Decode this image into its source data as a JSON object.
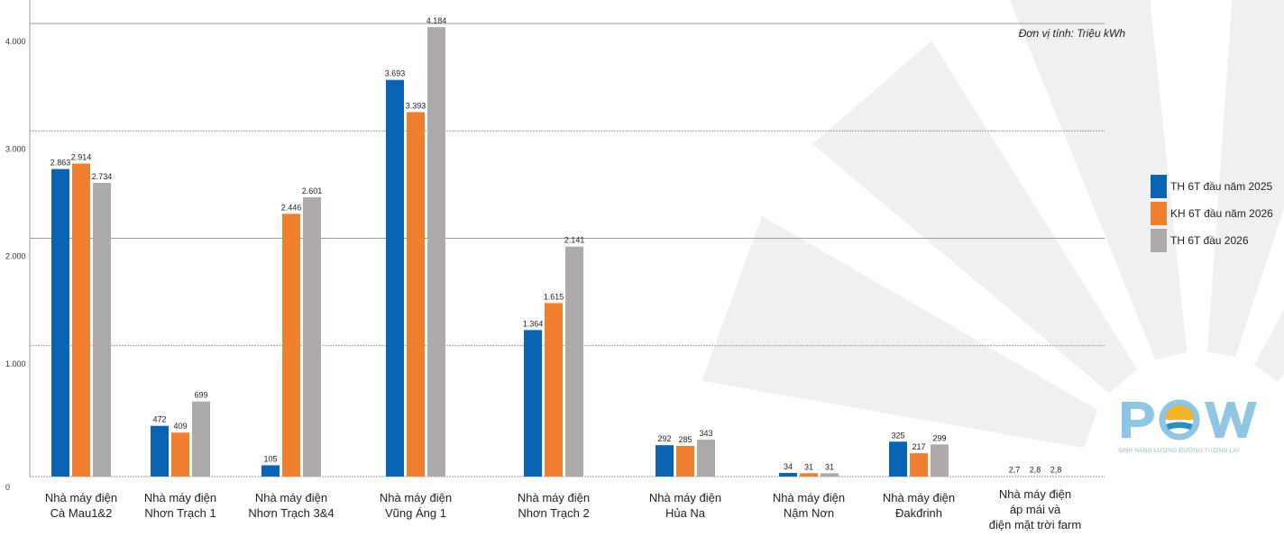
{
  "unit_note": "Đơn vị tính: Triệu kWh",
  "colors": {
    "series_1": "#0a64b4",
    "series_2": "#ef7f2f",
    "series_3": "#aeaaaa",
    "grid": "#9a9a9a",
    "watermark": "#f0f0f0"
  },
  "logo": {
    "text": "POW",
    "tagline": "SINH NĂNG LƯỢNG ĐƯỜNG TƯƠNG LAI"
  },
  "chart_data": {
    "type": "bar",
    "title": "",
    "xlabel": "",
    "ylabel": "",
    "ylim": [
      0,
      4500
    ],
    "yticks": [
      0,
      1000,
      2000,
      3000,
      4000
    ],
    "ytick_labels": [
      "0",
      "1.000",
      "2.000",
      "3.000",
      "4.000"
    ],
    "grid": true,
    "legend_position": "right",
    "categories": [
      [
        "Nhà máy điện",
        "Cà Mau1&2"
      ],
      [
        "Nhà máy điện",
        "Nhơn Trạch 1"
      ],
      [
        "Nhà máy điện",
        "Nhơn Trạch 3&4"
      ],
      [
        "Nhà máy điện",
        "Vũng Áng 1"
      ],
      [
        "Nhà máy điện",
        "Nhơn Trạch 2"
      ],
      [
        "Nhà máy điện",
        "Hủa Na"
      ],
      [
        "Nhà máy điện",
        "Nậm Nơn"
      ],
      [
        "Nhà máy điện",
        "Đakđrinh"
      ],
      [
        "Nhà máy điện",
        "áp mái và",
        "điện mặt trời farm"
      ]
    ],
    "series": [
      {
        "name": "TH 6T đầu năm 2025",
        "values": [
          2863,
          472,
          105,
          3693,
          1364,
          292,
          34,
          325,
          2.7
        ],
        "labels": [
          "2.863",
          "472",
          "105",
          "3.693",
          "1.364",
          "292",
          "34",
          "325",
          "2,7"
        ]
      },
      {
        "name": "KH 6T đầu năm  2026",
        "values": [
          2914,
          409,
          2446,
          3393,
          1615,
          285,
          31,
          217,
          2.8
        ],
        "labels": [
          "2.914",
          "409",
          "2.446",
          "3.393",
          "1.615",
          "285",
          "31",
          "217",
          "2,8"
        ]
      },
      {
        "name": "TH 6T đầu 2026",
        "values": [
          2734,
          699,
          2601,
          4184,
          2141,
          343,
          31,
          299,
          2.8
        ],
        "labels": [
          "2.734",
          "699",
          "2.601",
          "4.184",
          "2.141",
          "343",
          "31",
          "299",
          "2,8"
        ]
      }
    ]
  }
}
